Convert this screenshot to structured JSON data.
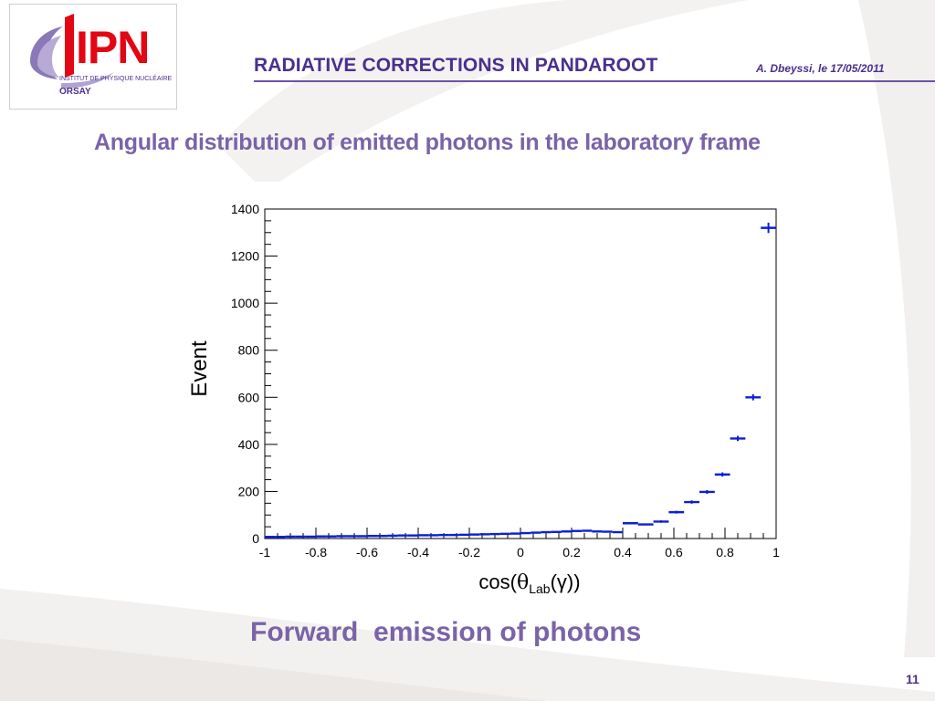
{
  "logo": {
    "acronym": "IPN",
    "institute": "INSTITUT DE PHYSIQUE NUCLÉAIRE",
    "city": "ORSAY"
  },
  "header": {
    "title": "RADIATIVE CORRECTIONS IN PANDAROOT",
    "author_date": "A. Dbeyssi, le 17/05/2011"
  },
  "subtitle": "Angular distribution of emitted photons in the laboratory frame",
  "caption": "Forward  emission of photons",
  "page_number": "11",
  "colors": {
    "accent": "#4b2f8f",
    "text_secondary": "#7a63a8",
    "series": "#0b1fd6"
  },
  "chart_data": {
    "type": "scatter",
    "title": "",
    "xlabel_prefix": "cos(",
    "xlabel_theta": "θ",
    "xlabel_sub": "Lab",
    "xlabel_suffix": "(γ))",
    "ylabel": "Event",
    "xlim": [
      -1,
      1
    ],
    "ylim": [
      0,
      1400
    ],
    "x_ticks": [
      "-1",
      "-0.8",
      "-0.6",
      "-0.4",
      "-0.2",
      "0",
      "0.2",
      "0.4",
      "0.6",
      "0.8",
      "1"
    ],
    "y_ticks": [
      "0",
      "200",
      "400",
      "600",
      "800",
      "1000",
      "1200",
      "1400"
    ],
    "grid": false,
    "legend": "none",
    "series": [
      {
        "bin_width": 0.04,
        "x": [
          -0.98,
          -0.94,
          -0.9,
          -0.86,
          -0.82,
          -0.78,
          -0.74,
          -0.7,
          -0.66,
          -0.62,
          -0.58,
          -0.54,
          -0.5,
          -0.46,
          -0.42,
          -0.38,
          -0.34,
          -0.3,
          -0.26,
          -0.22,
          -0.18,
          -0.14,
          -0.1,
          -0.06,
          -0.02,
          0.02,
          0.06,
          0.1,
          0.14,
          0.18,
          0.22,
          0.26,
          0.3,
          0.34,
          0.38
        ],
        "y": [
          7,
          7,
          8,
          8,
          8,
          9,
          9,
          10,
          10,
          10,
          11,
          11,
          12,
          13,
          13,
          14,
          14,
          15,
          15,
          16,
          17,
          18,
          19,
          20,
          21,
          23,
          25,
          27,
          28,
          30,
          32,
          33,
          30,
          29,
          27
        ],
        "y_err": [
          2,
          2,
          2,
          2,
          2,
          2,
          2,
          2,
          2,
          2,
          2,
          2,
          2,
          2,
          2,
          2,
          2,
          2,
          2,
          2,
          2,
          2,
          2,
          2,
          3,
          3,
          3,
          3,
          3,
          3,
          3,
          3,
          3,
          3,
          3
        ]
      },
      {
        "bin_width": 0.06,
        "x": [
          0.43,
          0.49,
          0.55,
          0.61,
          0.67,
          0.73,
          0.79,
          0.85,
          0.91,
          0.97
        ],
        "y": [
          65,
          60,
          72,
          112,
          155,
          198,
          272,
          425,
          600,
          1320
        ],
        "y_err": [
          4,
          4,
          5,
          6,
          7,
          8,
          9,
          11,
          13,
          22
        ]
      }
    ]
  }
}
